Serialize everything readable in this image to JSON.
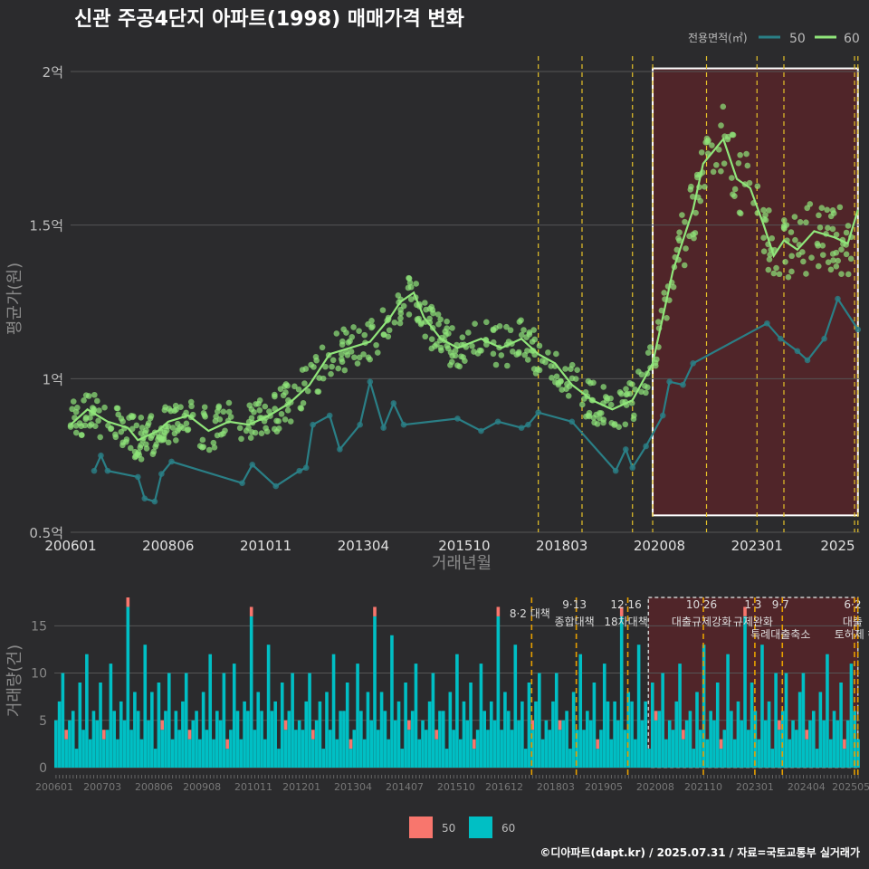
{
  "title": "신관 주공4단지 아파트(1998) 매매가격 변화",
  "caption": "©디아파트(dapt.kr) / 2025.07.31 / 자료=국토교통부 실거래가",
  "colors": {
    "background": "#2b2b2d",
    "series50_line": "#2a7f86",
    "series60_line": "#90e67a",
    "bar50": "#f8766d",
    "bar60": "#00bfc4",
    "highlight_fill": "#5a2428",
    "policy_line": "#e6c229"
  },
  "chart_data": [
    {
      "type": "line",
      "xlabel": "거래년월",
      "ylabel": "평균가(원)",
      "ylim": [
        0.5,
        2.05
      ],
      "y_unit": "억",
      "x_ticks": [
        "200601",
        "200806",
        "201011",
        "201304",
        "201510",
        "201803",
        "202008",
        "202301",
        "2025"
      ],
      "y_ticks": [
        "0.5억",
        "1억",
        "1.5억",
        "2억"
      ],
      "legend": {
        "title": "전용면적(㎡)",
        "position": "top-right",
        "entries": [
          "50",
          "60"
        ]
      },
      "highlight_range": [
        "2020-06",
        "2025-07"
      ],
      "policy_lines": [
        "2017-08",
        "2018-09",
        "2019-12",
        "2020-06",
        "2021-10",
        "2023-01",
        "2023-09",
        "2025-06",
        "2025-07"
      ],
      "series": [
        {
          "name": "50",
          "points": [
            [
              "2006-08",
              0.7
            ],
            [
              "2006-10",
              0.75
            ],
            [
              "2006-12",
              0.7
            ],
            [
              "2007-09",
              0.68
            ],
            [
              "2007-11",
              0.61
            ],
            [
              "2008-02",
              0.6
            ],
            [
              "2008-04",
              0.69
            ],
            [
              "2008-07",
              0.73
            ],
            [
              "2010-04",
              0.66
            ],
            [
              "2010-07",
              0.72
            ],
            [
              "2011-02",
              0.65
            ],
            [
              "2011-09",
              0.7
            ],
            [
              "2011-11",
              0.71
            ],
            [
              "2012-01",
              0.85
            ],
            [
              "2012-06",
              0.88
            ],
            [
              "2012-09",
              0.77
            ],
            [
              "2013-03",
              0.85
            ],
            [
              "2013-06",
              0.99
            ],
            [
              "2013-10",
              0.84
            ],
            [
              "2014-01",
              0.92
            ],
            [
              "2014-04",
              0.85
            ],
            [
              "2015-08",
              0.87
            ],
            [
              "2016-03",
              0.83
            ],
            [
              "2016-08",
              0.86
            ],
            [
              "2017-03",
              0.84
            ],
            [
              "2017-05",
              0.85
            ],
            [
              "2017-08",
              0.89
            ],
            [
              "2018-06",
              0.86
            ],
            [
              "2019-07",
              0.7
            ],
            [
              "2019-10",
              0.77
            ],
            [
              "2019-12",
              0.71
            ],
            [
              "2020-04",
              0.78
            ],
            [
              "2020-09",
              0.88
            ],
            [
              "2020-11",
              0.99
            ],
            [
              "2021-03",
              0.98
            ],
            [
              "2021-06",
              1.05
            ],
            [
              "2023-04",
              1.18
            ],
            [
              "2023-08",
              1.13
            ],
            [
              "2024-01",
              1.09
            ],
            [
              "2024-04",
              1.06
            ],
            [
              "2024-09",
              1.13
            ],
            [
              "2025-01",
              1.26
            ],
            [
              "2025-07",
              1.16
            ]
          ]
        },
        {
          "name": "60",
          "points": [
            [
              "2006-01",
              0.85
            ],
            [
              "2006-06",
              0.9
            ],
            [
              "2006-12",
              0.86
            ],
            [
              "2007-06",
              0.84
            ],
            [
              "2007-09",
              0.8
            ],
            [
              "2008-03",
              0.83
            ],
            [
              "2008-06",
              0.86
            ],
            [
              "2008-12",
              0.88
            ],
            [
              "2009-06",
              0.83
            ],
            [
              "2009-12",
              0.86
            ],
            [
              "2010-06",
              0.85
            ],
            [
              "2010-12",
              0.88
            ],
            [
              "2011-06",
              0.92
            ],
            [
              "2011-12",
              0.98
            ],
            [
              "2012-06",
              1.08
            ],
            [
              "2012-12",
              1.1
            ],
            [
              "2013-06",
              1.12
            ],
            [
              "2013-12",
              1.2
            ],
            [
              "2014-03",
              1.25
            ],
            [
              "2014-07",
              1.28
            ],
            [
              "2014-10",
              1.2
            ],
            [
              "2015-03",
              1.13
            ],
            [
              "2015-08",
              1.1
            ],
            [
              "2016-03",
              1.13
            ],
            [
              "2016-09",
              1.1
            ],
            [
              "2017-03",
              1.13
            ],
            [
              "2017-08",
              1.08
            ],
            [
              "2018-01",
              1.05
            ],
            [
              "2018-06",
              0.98
            ],
            [
              "2018-12",
              0.93
            ],
            [
              "2019-06",
              0.9
            ],
            [
              "2019-12",
              0.93
            ],
            [
              "2020-06",
              1.05
            ],
            [
              "2020-09",
              1.2
            ],
            [
              "2020-12",
              1.35
            ],
            [
              "2021-06",
              1.55
            ],
            [
              "2021-09",
              1.7
            ],
            [
              "2022-03",
              1.78
            ],
            [
              "2022-07",
              1.65
            ],
            [
              "2022-11",
              1.62
            ],
            [
              "2023-03",
              1.5
            ],
            [
              "2023-06",
              1.4
            ],
            [
              "2023-09",
              1.45
            ],
            [
              "2024-01",
              1.42
            ],
            [
              "2024-06",
              1.48
            ],
            [
              "2024-12",
              1.46
            ],
            [
              "2025-04",
              1.44
            ],
            [
              "2025-07",
              1.55
            ]
          ]
        }
      ]
    },
    {
      "type": "bar",
      "xlabel": "",
      "ylabel": "거래량(건)",
      "ylim": [
        0,
        18
      ],
      "stacked": true,
      "x_ticks": [
        "200601",
        "200703",
        "200806",
        "200908",
        "201011",
        "201201",
        "201304",
        "201407",
        "201510",
        "201612",
        "201803",
        "201905",
        "202008",
        "202110",
        "202301",
        "202404",
        "202505"
      ],
      "y_ticks": [
        "0",
        "5",
        "10",
        "15"
      ],
      "legend": {
        "position": "bottom",
        "entries": [
          "50",
          "60"
        ]
      },
      "policy_annotations": [
        {
          "date": "2017-08",
          "label": "8·2 대책"
        },
        {
          "date": "2018-09",
          "label": "9·13",
          "label2": "종합대책"
        },
        {
          "date": "2019-12",
          "label": "12·16",
          "label2": "18차대책"
        },
        {
          "date": "2021-10",
          "label": "10·26",
          "label2": "대출규제강화"
        },
        {
          "date": "2023-01",
          "label": "1·3",
          "label2": "규제완화"
        },
        {
          "date": "2023-09",
          "label": "9·7",
          "label2": "특례대출축소"
        },
        {
          "date": "2025-06",
          "label": "6·2",
          "label2": "대출"
        },
        {
          "date": "2025-07",
          "label": "",
          "label2": "토허제 해"
        }
      ],
      "values60_cycle": [
        4,
        7,
        10,
        3,
        5,
        6,
        2,
        8,
        4,
        12,
        3,
        6,
        5,
        9,
        2,
        4,
        11,
        6,
        3,
        7,
        5,
        16,
        4,
        8,
        6,
        3,
        13,
        5,
        7,
        2,
        9,
        4,
        6,
        10,
        3,
        5
      ],
      "values50_cycle": [
        0,
        0,
        0,
        1,
        0,
        0,
        0,
        0,
        0,
        0,
        0,
        0,
        0,
        0,
        1,
        0,
        0,
        0,
        0,
        0,
        0,
        1,
        0,
        0,
        0,
        0,
        0,
        0,
        0,
        0,
        0,
        1,
        0,
        0,
        0,
        0
      ]
    }
  ],
  "legend_bottom": [
    "50",
    "60"
  ]
}
